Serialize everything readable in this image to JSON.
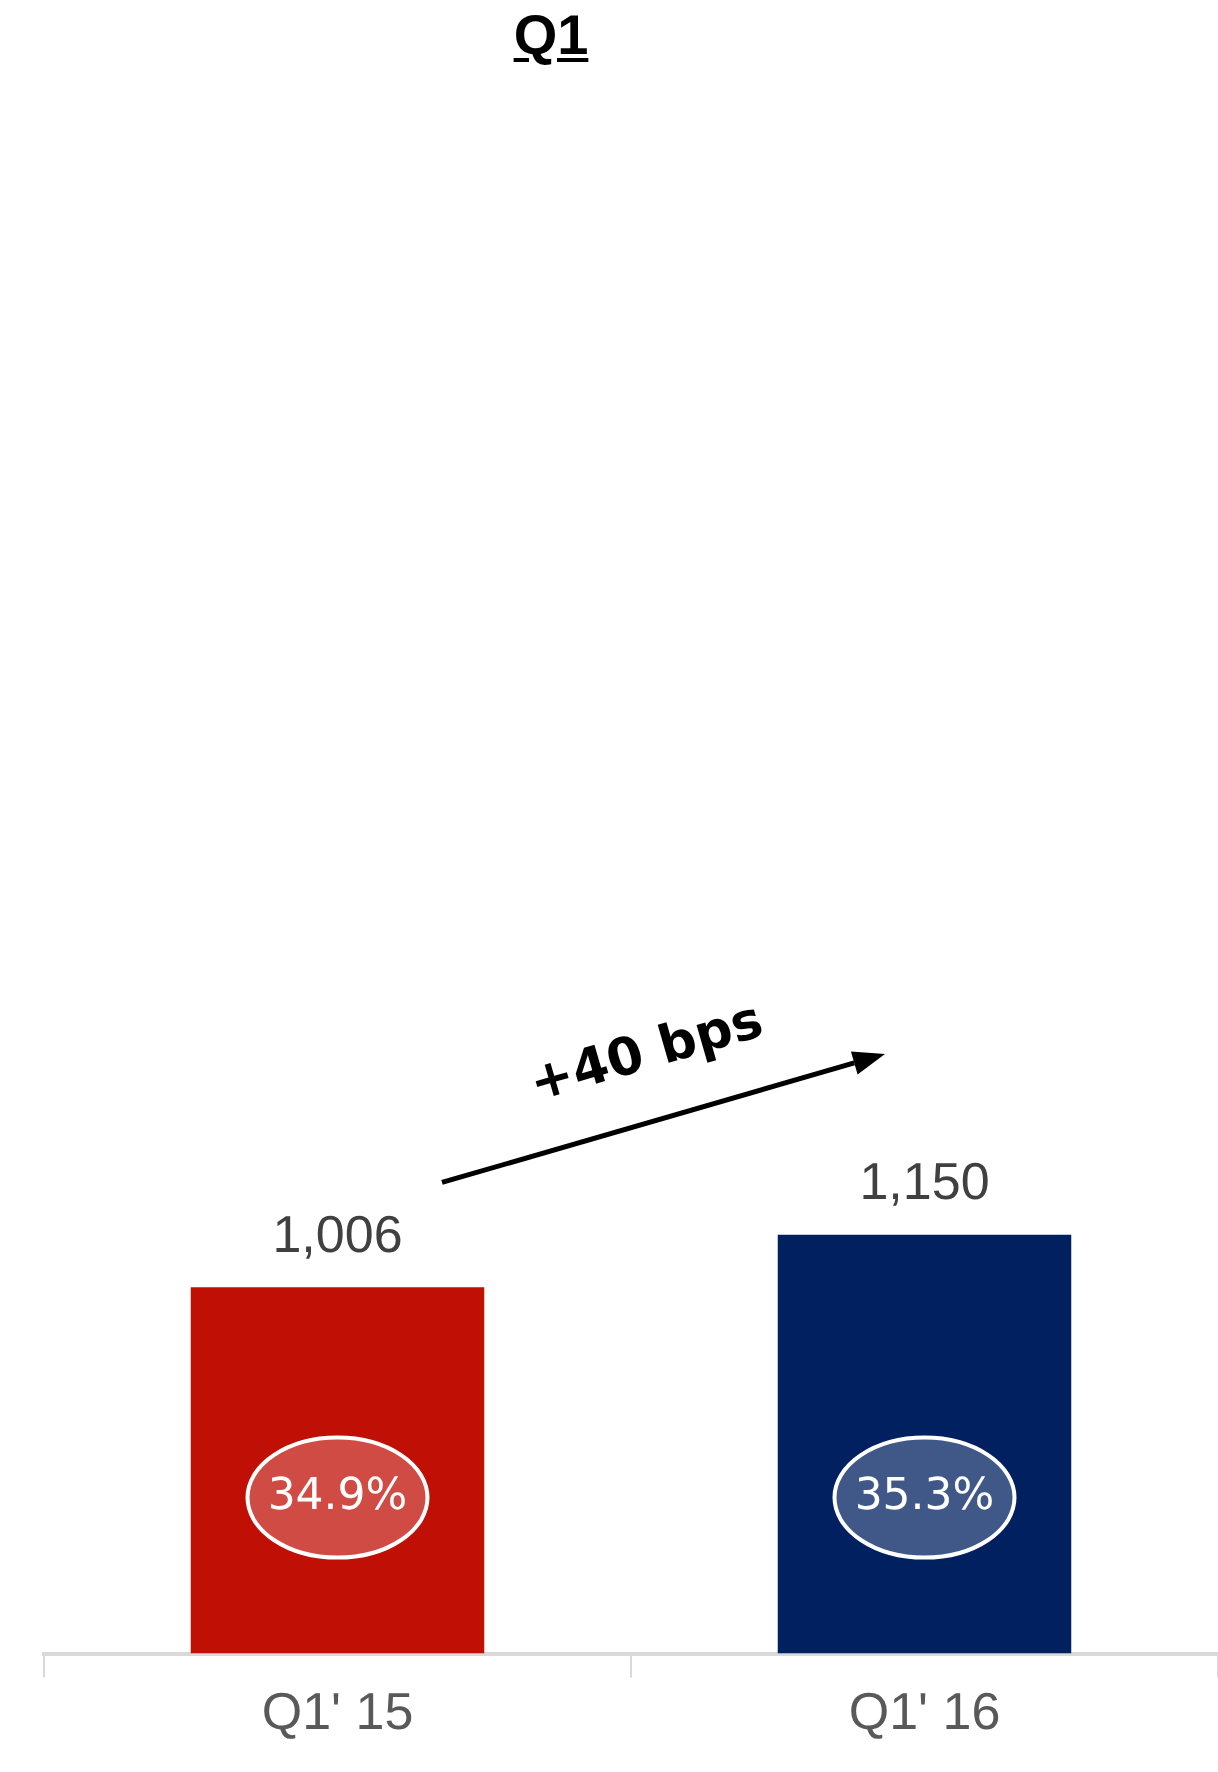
{
  "chart_data": {
    "type": "bar",
    "title": "Q1",
    "categories": [
      "Q1' 15",
      "Q1' 16"
    ],
    "values": [
      1006,
      1150
    ],
    "colors": [
      "#c00f05",
      "#002060"
    ],
    "value_labels": [
      "1,006",
      "1,150"
    ],
    "annotations": [
      "+40 bps",
      "34.9%",
      "35.3%"
    ]
  }
}
